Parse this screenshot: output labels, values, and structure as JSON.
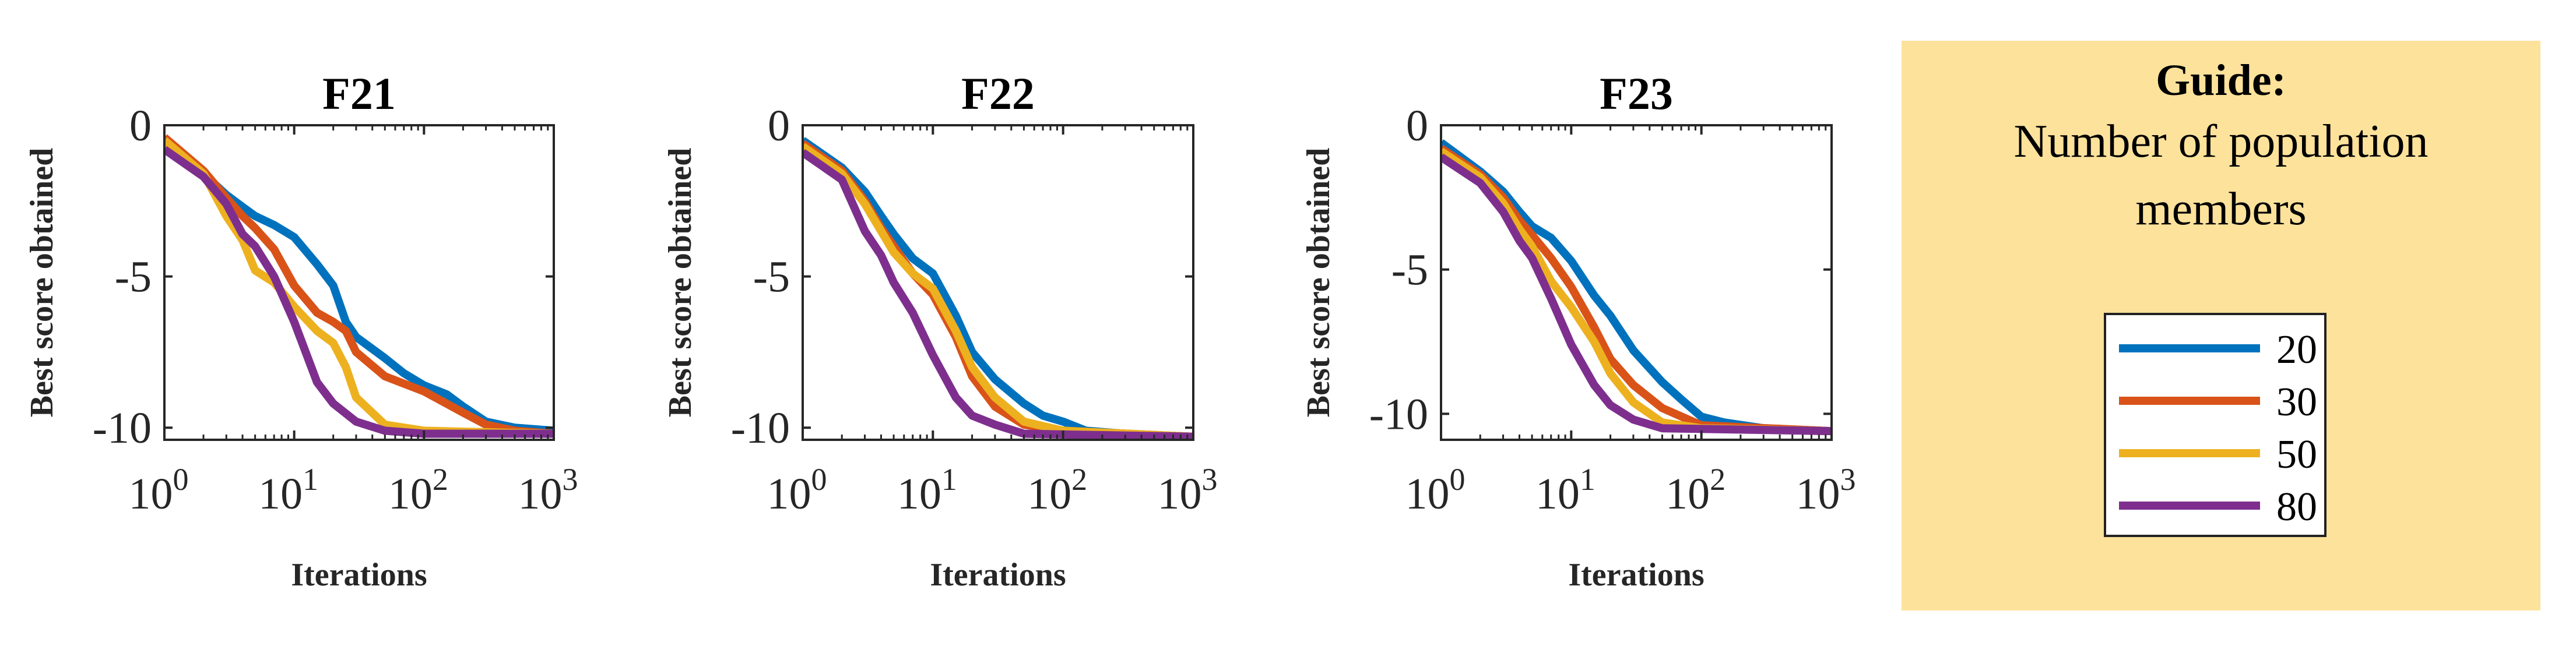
{
  "chart_data": [
    {
      "type": "line",
      "title": "F21",
      "xlabel": "Iterations",
      "ylabel": "Best score obtained",
      "xscale": "log",
      "xlim": [
        1,
        1000
      ],
      "ylim": [
        -10.4,
        0
      ],
      "yticks": [
        0,
        -5,
        -10
      ],
      "ytick_labels": [
        "0",
        "-5",
        "-10"
      ],
      "xticks": [
        1,
        10,
        100,
        1000
      ],
      "xtick_labels": [
        [
          "10",
          "0"
        ],
        [
          "10",
          "1"
        ],
        [
          "10",
          "2"
        ],
        [
          "10",
          "3"
        ]
      ],
      "grid": false,
      "series": [
        {
          "name": "20",
          "color": "#0072BD",
          "points": [
            [
              1,
              -0.5
            ],
            [
              2,
              -1.6
            ],
            [
              3,
              -2.3
            ],
            [
              4,
              -2.7
            ],
            [
              5,
              -3.0
            ],
            [
              7,
              -3.3
            ],
            [
              10,
              -3.7
            ],
            [
              15,
              -4.6
            ],
            [
              20,
              -5.3
            ],
            [
              25,
              -6.5
            ],
            [
              30,
              -7.0
            ],
            [
              50,
              -7.7
            ],
            [
              70,
              -8.2
            ],
            [
              100,
              -8.6
            ],
            [
              150,
              -8.9
            ],
            [
              200,
              -9.3
            ],
            [
              300,
              -9.8
            ],
            [
              500,
              -10.0
            ],
            [
              1000,
              -10.1
            ]
          ]
        },
        {
          "name": "30",
          "color": "#D95319",
          "points": [
            [
              1,
              -0.4
            ],
            [
              2,
              -1.5
            ],
            [
              3,
              -2.4
            ],
            [
              4,
              -3.0
            ],
            [
              5,
              -3.4
            ],
            [
              7,
              -4.1
            ],
            [
              10,
              -5.3
            ],
            [
              15,
              -6.2
            ],
            [
              20,
              -6.5
            ],
            [
              25,
              -6.8
            ],
            [
              30,
              -7.5
            ],
            [
              50,
              -8.3
            ],
            [
              100,
              -8.8
            ],
            [
              200,
              -9.5
            ],
            [
              300,
              -9.9
            ],
            [
              500,
              -10.1
            ],
            [
              1000,
              -10.2
            ]
          ]
        },
        {
          "name": "50",
          "color": "#EDB120",
          "points": [
            [
              1,
              -0.5
            ],
            [
              2,
              -1.6
            ],
            [
              3,
              -3.0
            ],
            [
              4,
              -3.8
            ],
            [
              5,
              -4.8
            ],
            [
              7,
              -5.2
            ],
            [
              10,
              -6.0
            ],
            [
              15,
              -6.8
            ],
            [
              20,
              -7.2
            ],
            [
              25,
              -8.0
            ],
            [
              30,
              -9.0
            ],
            [
              50,
              -9.9
            ],
            [
              100,
              -10.1
            ],
            [
              1000,
              -10.2
            ]
          ]
        },
        {
          "name": "80",
          "color": "#7E2F8E",
          "points": [
            [
              1,
              -0.8
            ],
            [
              2,
              -1.7
            ],
            [
              3,
              -2.6
            ],
            [
              4,
              -3.6
            ],
            [
              5,
              -4.0
            ],
            [
              7,
              -5.0
            ],
            [
              10,
              -6.5
            ],
            [
              15,
              -8.5
            ],
            [
              20,
              -9.2
            ],
            [
              30,
              -9.8
            ],
            [
              50,
              -10.1
            ],
            [
              100,
              -10.2
            ],
            [
              1000,
              -10.2
            ]
          ]
        }
      ]
    },
    {
      "type": "line",
      "title": "F22",
      "xlabel": "Iterations",
      "ylabel": "Best score obtained",
      "xscale": "log",
      "xlim": [
        1,
        1000
      ],
      "ylim": [
        -10.4,
        0
      ],
      "yticks": [
        0,
        -5,
        -10
      ],
      "ytick_labels": [
        "0",
        "-5",
        "-10"
      ],
      "xticks": [
        1,
        10,
        100,
        1000
      ],
      "xtick_labels": [
        [
          "10",
          "0"
        ],
        [
          "10",
          "1"
        ],
        [
          "10",
          "2"
        ],
        [
          "10",
          "3"
        ]
      ],
      "grid": false,
      "series": [
        {
          "name": "20",
          "color": "#0072BD",
          "points": [
            [
              1,
              -0.5
            ],
            [
              2,
              -1.4
            ],
            [
              3,
              -2.2
            ],
            [
              4,
              -3.0
            ],
            [
              5,
              -3.6
            ],
            [
              7,
              -4.4
            ],
            [
              10,
              -4.9
            ],
            [
              15,
              -6.3
            ],
            [
              20,
              -7.5
            ],
            [
              30,
              -8.4
            ],
            [
              50,
              -9.2
            ],
            [
              70,
              -9.6
            ],
            [
              100,
              -9.8
            ],
            [
              150,
              -10.1
            ],
            [
              300,
              -10.2
            ],
            [
              1000,
              -10.3
            ]
          ]
        },
        {
          "name": "30",
          "color": "#D95319",
          "points": [
            [
              1,
              -0.6
            ],
            [
              2,
              -1.5
            ],
            [
              3,
              -2.5
            ],
            [
              4,
              -3.4
            ],
            [
              5,
              -4.0
            ],
            [
              7,
              -4.9
            ],
            [
              10,
              -5.6
            ],
            [
              15,
              -7.0
            ],
            [
              20,
              -8.3
            ],
            [
              30,
              -9.3
            ],
            [
              50,
              -9.9
            ],
            [
              100,
              -10.1
            ],
            [
              1000,
              -10.3
            ]
          ]
        },
        {
          "name": "50",
          "color": "#EDB120",
          "points": [
            [
              1,
              -0.7
            ],
            [
              2,
              -1.6
            ],
            [
              3,
              -2.6
            ],
            [
              4,
              -3.5
            ],
            [
              5,
              -4.2
            ],
            [
              7,
              -4.9
            ],
            [
              10,
              -5.4
            ],
            [
              15,
              -6.8
            ],
            [
              20,
              -8.0
            ],
            [
              30,
              -9.0
            ],
            [
              50,
              -9.8
            ],
            [
              100,
              -10.1
            ],
            [
              1000,
              -10.3
            ]
          ]
        },
        {
          "name": "80",
          "color": "#7E2F8E",
          "points": [
            [
              1,
              -0.9
            ],
            [
              2,
              -1.8
            ],
            [
              3,
              -3.5
            ],
            [
              4,
              -4.3
            ],
            [
              5,
              -5.2
            ],
            [
              7,
              -6.2
            ],
            [
              10,
              -7.6
            ],
            [
              15,
              -9.0
            ],
            [
              20,
              -9.6
            ],
            [
              30,
              -9.9
            ],
            [
              50,
              -10.2
            ],
            [
              1000,
              -10.3
            ]
          ]
        }
      ]
    },
    {
      "type": "line",
      "title": "F23",
      "xlabel": "Iterations",
      "ylabel": "Best score obtained",
      "xscale": "log",
      "xlim": [
        1,
        1000
      ],
      "ylim": [
        -10.9,
        0
      ],
      "yticks": [
        0,
        -5,
        -10
      ],
      "ytick_labels": [
        "0",
        "-5",
        "-10"
      ],
      "xticks": [
        1,
        10,
        100,
        1000
      ],
      "xtick_labels": [
        [
          "10",
          "0"
        ],
        [
          "10",
          "1"
        ],
        [
          "10",
          "2"
        ],
        [
          "10",
          "3"
        ]
      ],
      "grid": false,
      "series": [
        {
          "name": "20",
          "color": "#0072BD",
          "points": [
            [
              1,
              -0.6
            ],
            [
              2,
              -1.6
            ],
            [
              3,
              -2.3
            ],
            [
              4,
              -3.0
            ],
            [
              5,
              -3.5
            ],
            [
              7,
              -3.9
            ],
            [
              10,
              -4.7
            ],
            [
              15,
              -5.9
            ],
            [
              20,
              -6.6
            ],
            [
              30,
              -7.8
            ],
            [
              50,
              -8.9
            ],
            [
              70,
              -9.5
            ],
            [
              100,
              -10.1
            ],
            [
              150,
              -10.3
            ],
            [
              300,
              -10.5
            ],
            [
              1000,
              -10.6
            ]
          ]
        },
        {
          "name": "30",
          "color": "#D95319",
          "points": [
            [
              1,
              -0.8
            ],
            [
              2,
              -1.7
            ],
            [
              3,
              -2.5
            ],
            [
              4,
              -3.3
            ],
            [
              5,
              -3.8
            ],
            [
              7,
              -4.6
            ],
            [
              10,
              -5.6
            ],
            [
              15,
              -7.0
            ],
            [
              20,
              -8.1
            ],
            [
              30,
              -9.0
            ],
            [
              50,
              -9.8
            ],
            [
              100,
              -10.4
            ],
            [
              1000,
              -10.6
            ]
          ]
        },
        {
          "name": "50",
          "color": "#EDB120",
          "points": [
            [
              1,
              -0.9
            ],
            [
              2,
              -1.8
            ],
            [
              3,
              -2.7
            ],
            [
              4,
              -3.6
            ],
            [
              5,
              -4.2
            ],
            [
              7,
              -5.4
            ],
            [
              10,
              -6.3
            ],
            [
              15,
              -7.5
            ],
            [
              20,
              -8.6
            ],
            [
              30,
              -9.6
            ],
            [
              50,
              -10.3
            ],
            [
              100,
              -10.5
            ],
            [
              1000,
              -10.6
            ]
          ]
        },
        {
          "name": "80",
          "color": "#7E2F8E",
          "points": [
            [
              1,
              -1.1
            ],
            [
              2,
              -2.0
            ],
            [
              3,
              -3.0
            ],
            [
              4,
              -4.0
            ],
            [
              5,
              -4.6
            ],
            [
              7,
              -6.0
            ],
            [
              10,
              -7.6
            ],
            [
              15,
              -9.0
            ],
            [
              20,
              -9.7
            ],
            [
              30,
              -10.2
            ],
            [
              50,
              -10.5
            ],
            [
              1000,
              -10.6
            ]
          ]
        }
      ]
    }
  ],
  "guide": {
    "title": "Guide:",
    "subtitle_line1": "Number of population",
    "subtitle_line2": "members",
    "legend": [
      {
        "label": "20",
        "color": "#0072BD"
      },
      {
        "label": "30",
        "color": "#D95319"
      },
      {
        "label": "50",
        "color": "#EDB120"
      },
      {
        "label": "80",
        "color": "#7E2F8E"
      }
    ]
  }
}
